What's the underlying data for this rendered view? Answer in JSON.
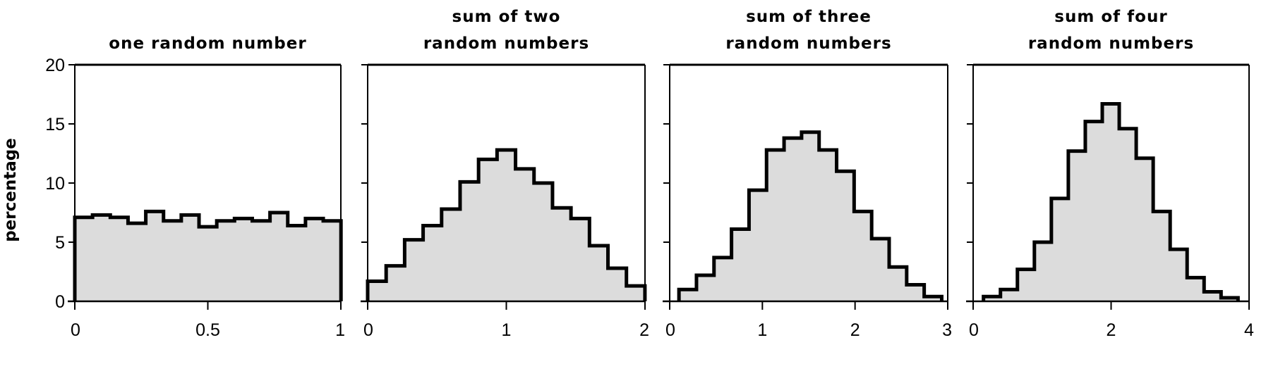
{
  "chart_data": [
    {
      "type": "bar",
      "title": [
        "one random number"
      ],
      "ylabel": "percentage",
      "ylim": [
        0,
        20
      ],
      "yticks": [
        "0",
        "5",
        "10",
        "15",
        "20"
      ],
      "xlim": [
        0,
        1
      ],
      "xticks": [
        {
          "value": 0,
          "label": "0"
        },
        {
          "value": 0.5,
          "label": "0.5"
        },
        {
          "value": 1,
          "label": "1"
        }
      ],
      "bin_start": 0,
      "bin_width": 0.0667,
      "values": [
        7.1,
        7.3,
        7.1,
        6.6,
        7.6,
        6.8,
        7.3,
        6.3,
        6.8,
        7.0,
        6.8,
        7.5,
        6.4,
        7.0,
        6.8
      ]
    },
    {
      "type": "bar",
      "title": [
        "sum of two",
        "random numbers"
      ],
      "ylim": [
        0,
        20
      ],
      "xlim": [
        0,
        2
      ],
      "xticks": [
        {
          "value": 0,
          "label": "0"
        },
        {
          "value": 1,
          "label": "1"
        },
        {
          "value": 2,
          "label": "2"
        }
      ],
      "bin_start": 0,
      "bin_width": 0.1333,
      "values": [
        1.7,
        3.0,
        5.2,
        6.4,
        7.8,
        10.1,
        12.0,
        12.8,
        11.2,
        10.0,
        7.9,
        7.0,
        4.7,
        2.8,
        1.3
      ]
    },
    {
      "type": "bar",
      "title": [
        "sum of three",
        "random numbers"
      ],
      "ylim": [
        0,
        20
      ],
      "xlim": [
        0,
        3
      ],
      "xticks": [
        {
          "value": 0,
          "label": "0"
        },
        {
          "value": 1,
          "label": "1"
        },
        {
          "value": 2,
          "label": "2"
        },
        {
          "value": 3,
          "label": "3"
        }
      ],
      "bin_start": 0.1,
      "bin_width": 0.189,
      "values": [
        1.0,
        2.2,
        3.7,
        6.1,
        9.4,
        12.8,
        13.8,
        14.3,
        12.8,
        11.0,
        7.6,
        5.3,
        2.9,
        1.4,
        0.4
      ]
    },
    {
      "type": "bar",
      "title": [
        "sum of four",
        "random numbers"
      ],
      "ylim": [
        0,
        20
      ],
      "xlim": [
        0,
        4
      ],
      "xticks": [
        {
          "value": 0,
          "label": "0"
        },
        {
          "value": 2,
          "label": "2"
        },
        {
          "value": 4,
          "label": "4"
        }
      ],
      "bin_start": 0.15,
      "bin_width": 0.246,
      "values": [
        0.4,
        1.0,
        2.7,
        5.0,
        8.7,
        12.7,
        15.2,
        16.7,
        14.6,
        12.1,
        7.6,
        4.4,
        2.0,
        0.8,
        0.3
      ]
    }
  ],
  "colors": {
    "fill": "#dcdcdc",
    "stroke": "#000000"
  }
}
